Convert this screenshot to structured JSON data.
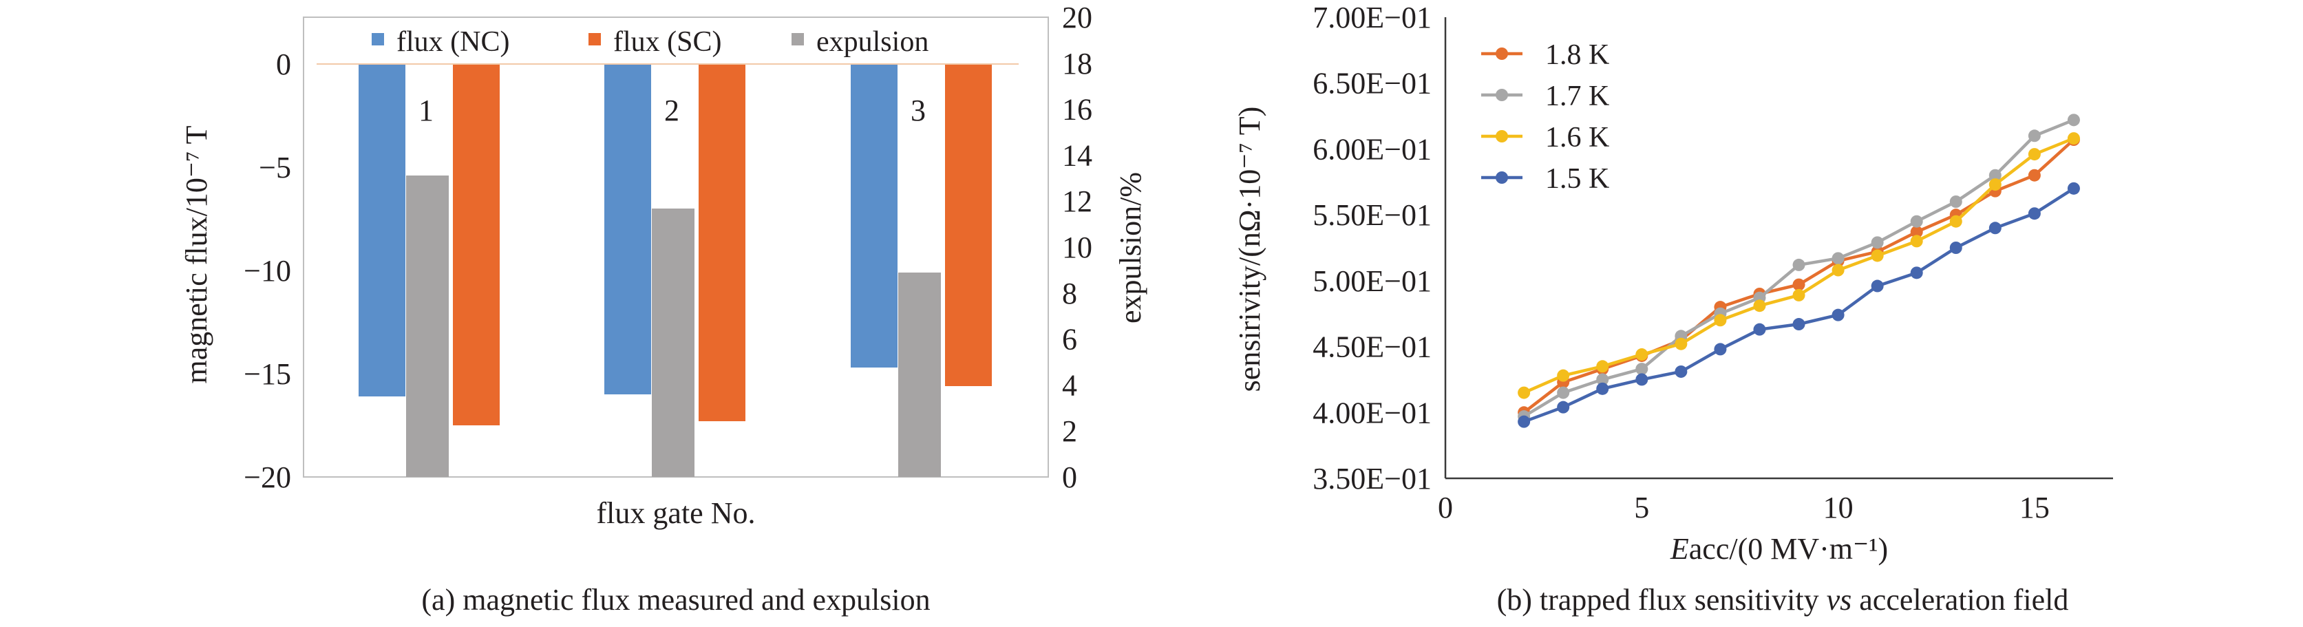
{
  "chart_data": [
    {
      "type": "bar",
      "caption": "(a) magnetic flux measured and expulsion",
      "xlabel": "flux gate No.",
      "ylabel": "magnetic flux/10⁻⁷ T",
      "y2label": "expulsion/%",
      "ylim": [
        -20,
        0
      ],
      "y2lim": [
        0,
        20
      ],
      "yticks": [
        "0",
        "−5",
        "−10",
        "−15",
        "−20"
      ],
      "y2ticks": [
        "20",
        "18",
        "16",
        "14",
        "12",
        "10",
        "8",
        "6",
        "4",
        "2",
        "0"
      ],
      "categories": [
        "1",
        "2",
        "3"
      ],
      "legend_position": "top",
      "series": [
        {
          "name": "flux (NC)",
          "axis": "left",
          "color": "#5b8fca",
          "values": [
            -16.1,
            -16.0,
            -14.7
          ]
        },
        {
          "name": "flux (SC)",
          "axis": "left",
          "color": "#e9692c",
          "values": [
            -17.5,
            -17.3,
            -15.6
          ]
        },
        {
          "name": "expulsion",
          "axis": "right",
          "color": "#a6a4a4",
          "values": [
            14.6,
            13.0,
            9.9
          ]
        }
      ]
    },
    {
      "type": "line",
      "caption": "(b) trapped flux sensitivity vs acceleration field",
      "caption_plain": "(b) trapped flux sensitivity ",
      "caption_italic": "vs",
      "caption_rest": " acceleration field",
      "xlabel_italic": "E",
      "xlabel_rest": "acc/(0 MV·m⁻¹)",
      "ylabel": "sensirivity/(nΩ·10⁻⁷ T)",
      "xlim": [
        0,
        17
      ],
      "ylim": [
        0.35,
        0.7
      ],
      "xticks": [
        "0",
        "5",
        "10",
        "15"
      ],
      "yticks": [
        "7.00E−01",
        "6.50E−01",
        "6.00E−01",
        "5.50E−01",
        "5.00E−01",
        "4.50E−01",
        "4.00E−01",
        "3.50E−01"
      ],
      "legend_position": "top-left",
      "x": [
        2,
        3,
        4,
        5,
        6,
        7,
        8,
        9,
        10,
        11,
        12,
        13,
        14,
        15,
        16
      ],
      "series": [
        {
          "name": "1.8 K",
          "color": "#e56f2e",
          "values": [
            0.4,
            0.423,
            0.433,
            0.443,
            0.455,
            0.48,
            0.49,
            0.497,
            0.515,
            0.522,
            0.537,
            0.55,
            0.568,
            0.58,
            0.607
          ]
        },
        {
          "name": "1.7 K",
          "color": "#a7a7a7",
          "values": [
            0.397,
            0.415,
            0.425,
            0.433,
            0.458,
            0.475,
            0.487,
            0.512,
            0.517,
            0.529,
            0.545,
            0.56,
            0.58,
            0.61,
            0.622
          ]
        },
        {
          "name": "1.6 K",
          "color": "#f4bd1b",
          "values": [
            0.415,
            0.428,
            0.435,
            0.444,
            0.452,
            0.47,
            0.481,
            0.489,
            0.508,
            0.519,
            0.53,
            0.545,
            0.573,
            0.596,
            0.608
          ]
        },
        {
          "name": "1.5 K",
          "color": "#4566ae",
          "values": [
            0.393,
            0.404,
            0.418,
            0.425,
            0.431,
            0.448,
            0.463,
            0.467,
            0.474,
            0.496,
            0.506,
            0.525,
            0.54,
            0.551,
            0.57
          ]
        }
      ]
    }
  ]
}
